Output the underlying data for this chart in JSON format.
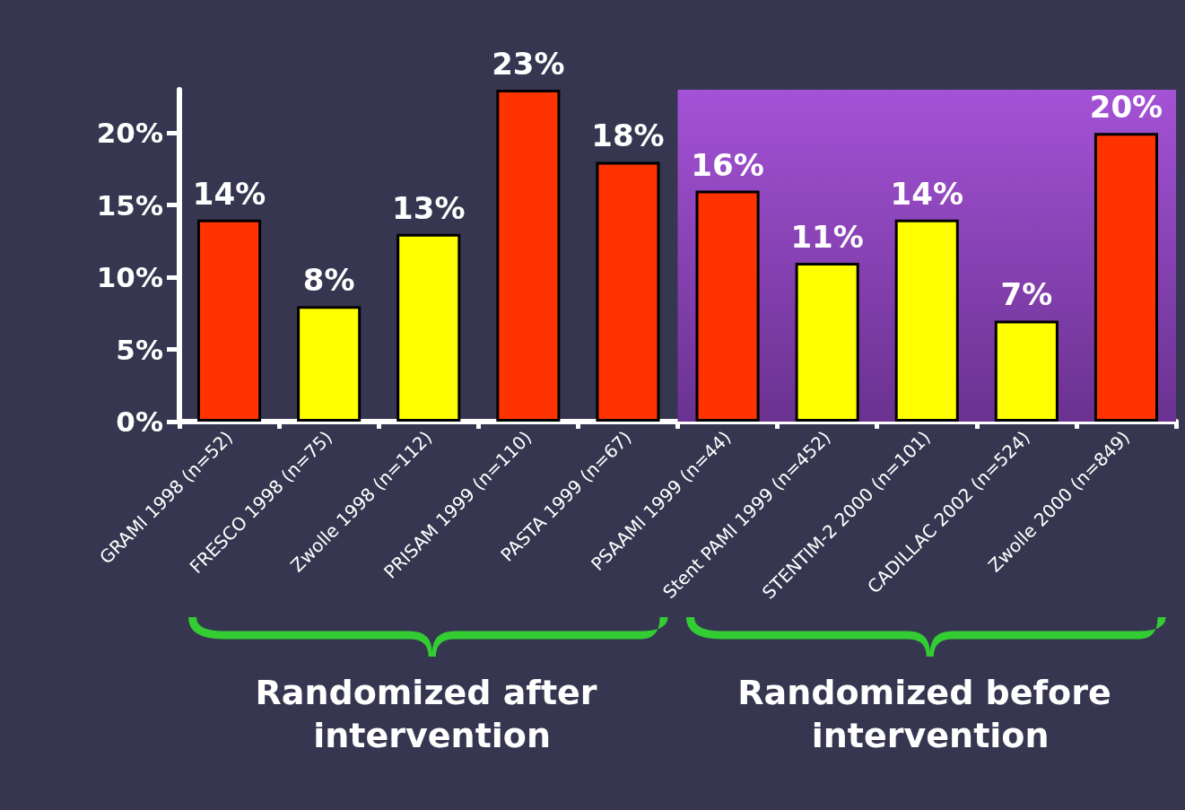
{
  "chart_data": {
    "type": "bar",
    "categories": [
      "GRAMI 1998 (n=52)",
      "FRESCO 1998 (n=75)",
      "Zwolle 1998 (n=112)",
      "PRISAM 1999 (n=110)",
      "PASTA 1999 (n=67)",
      "PSAAMI 1999 (n=44)",
      "Stent PAMI 1999 (n=452)",
      "STENTIM-2 2000 (n=101)",
      "CADILLAC 2002 (n=524)",
      "Zwolle 2000 (n=849)"
    ],
    "values": [
      14,
      8,
      13,
      23,
      18,
      16,
      11,
      14,
      7,
      20
    ],
    "colors": [
      "#ff3300",
      "#ffff00",
      "#ffff00",
      "#ff3300",
      "#ff3300",
      "#ff3300",
      "#ffff00",
      "#ffff00",
      "#ffff00",
      "#ff3300"
    ],
    "value_labels": [
      "14%",
      "8%",
      "13%",
      "23%",
      "18%",
      "16%",
      "11%",
      "14%",
      "7%",
      "20%"
    ],
    "ylim": [
      0,
      23
    ],
    "yticks": [
      {
        "value": 0,
        "label": "0%"
      },
      {
        "value": 5,
        "label": "5%"
      },
      {
        "value": 10,
        "label": "10%"
      },
      {
        "value": 15,
        "label": "15%"
      },
      {
        "value": 20,
        "label": "20%"
      }
    ],
    "grid": false,
    "bands": [
      {
        "axis": "x",
        "from": "PSAAMI 1999 (n=44)",
        "to": "Zwolle 2000 (n=849)",
        "color": "#a452d6"
      }
    ],
    "annotations": [
      "Randomized after intervention",
      "Randomized before intervention"
    ]
  }
}
